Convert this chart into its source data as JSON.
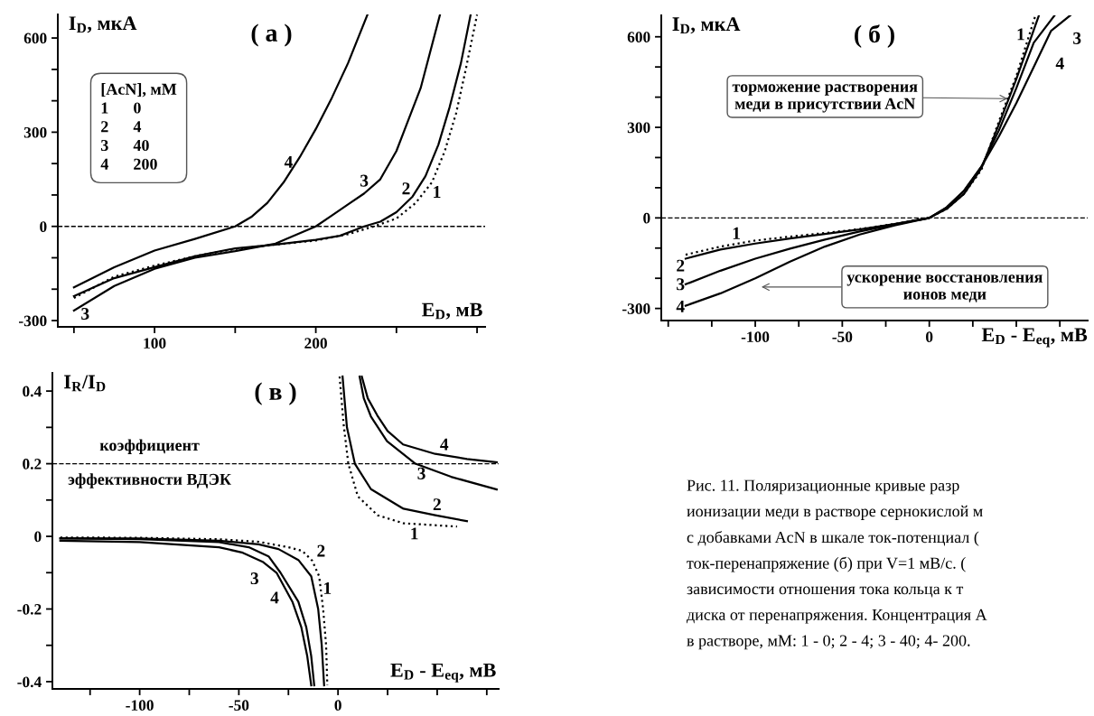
{
  "chart_data": [
    {
      "type": "line",
      "title": "( а )",
      "xlabel": "E$_{D}$, мВ",
      "ylabel": "I$_{D}$, мкА",
      "xlim": [
        40,
        305
      ],
      "ylim": [
        -320,
        675
      ],
      "xticks": [
        {
          "value": 50,
          "label": null
        },
        100,
        {
          "value": 150,
          "label": null
        },
        200,
        {
          "value": 250,
          "label": null
        },
        {
          "value": 300,
          "label": null
        }
      ],
      "yticks": [
        -300,
        {
          "value": -200,
          "label": null
        },
        {
          "value": -100,
          "label": null
        },
        0,
        {
          "value": 100,
          "label": null
        },
        {
          "value": 200,
          "label": null
        },
        300,
        {
          "value": 400,
          "label": null
        },
        {
          "value": 500,
          "label": null
        },
        600
      ],
      "ref_lines": [
        {
          "axis": "y",
          "value": 0,
          "line_style": "dashed",
          "color": "#000000"
        }
      ],
      "series": [
        {
          "color": "#000000",
          "line_style": "dotted",
          "x": [
            50,
            75,
            100,
            125,
            150,
            175,
            200,
            220,
            236,
            250,
            262,
            272,
            280,
            287,
            293,
            300
          ],
          "values": [
            -228,
            -160,
            -125,
            -95,
            -72,
            -58,
            -45,
            -25,
            0,
            25,
            75,
            140,
            240,
            360,
            500,
            674
          ]
        },
        {
          "color": "#000000",
          "line_style": "solid",
          "x": [
            50,
            75,
            100,
            125,
            150,
            175,
            200,
            215,
            230,
            240,
            250,
            260,
            268,
            276,
            283,
            290,
            296
          ],
          "values": [
            -222,
            -165,
            -130,
            -95,
            -70,
            -58,
            -43,
            -30,
            0,
            15,
            45,
            95,
            160,
            260,
            380,
            520,
            674
          ]
        },
        {
          "color": "#000000",
          "line_style": "solid",
          "x": [
            50,
            75,
            100,
            125,
            150,
            175,
            200,
            210,
            220,
            230,
            240,
            250,
            256,
            265,
            277
          ],
          "values": [
            -268,
            -190,
            -135,
            -100,
            -79,
            -55,
            0,
            35,
            70,
            105,
            150,
            240,
            320,
            440,
            674
          ]
        },
        {
          "color": "#000000",
          "line_style": "solid",
          "x": [
            50,
            75,
            100,
            125,
            150,
            160,
            170,
            180,
            190,
            200,
            210,
            220,
            232
          ],
          "values": [
            -194,
            -130,
            -77,
            -40,
            0,
            30,
            75,
            140,
            220,
            310,
            410,
            520,
            674
          ]
        }
      ],
      "annotations": [
        "[AcN], мМ\n1      0\n2      4\n3      40\n4      200",
        "4",
        "3",
        "2",
        "1",
        "3"
      ]
    },
    {
      "type": "line",
      "title": "( б )",
      "xlabel": "E$_{D}$ - E$_{eq}$, мВ",
      "ylabel": "I$_{D}$, мкА",
      "xlim": [
        -154,
        91
      ],
      "ylim": [
        -340,
        671
      ],
      "xticks": [
        {
          "value": -150,
          "label": null
        },
        {
          "value": -125,
          "label": null
        },
        -100,
        {
          "value": -75,
          "label": null
        },
        -50,
        {
          "value": -25,
          "label": null
        },
        0,
        {
          "value": 25,
          "label": null
        },
        {
          "value": 50,
          "label": null
        },
        {
          "value": 75,
          "label": null
        }
      ],
      "yticks": [
        -300,
        {
          "value": -200,
          "label": null
        },
        {
          "value": -100,
          "label": null
        },
        0,
        {
          "value": 100,
          "label": null
        },
        {
          "value": 200,
          "label": null
        },
        300,
        {
          "value": 400,
          "label": null
        },
        {
          "value": 500,
          "label": null
        },
        600
      ],
      "ref_lines": [
        {
          "axis": "y",
          "value": 0,
          "line_style": "dashed",
          "color": "#000000"
        }
      ],
      "series": [
        {
          "color": "#000000",
          "line_style": "dotted",
          "x": [
            -140,
            -120,
            -100,
            -80,
            -60,
            -40,
            -20,
            0,
            10,
            20,
            30,
            40,
            50,
            61
          ],
          "values": [
            -122,
            -95,
            -75,
            -62,
            -50,
            -37,
            -20,
            0,
            30,
            80,
            160,
            320,
            470,
            671
          ]
        },
        {
          "color": "#000000",
          "line_style": "solid",
          "x": [
            -140,
            -120,
            -100,
            -80,
            -60,
            -40,
            -20,
            0,
            10,
            20,
            30,
            40,
            50,
            63
          ],
          "values": [
            -135,
            -105,
            -85,
            -68,
            -53,
            -38,
            -20,
            0,
            30,
            80,
            165,
            310,
            460,
            671
          ]
        },
        {
          "color": "#000000",
          "line_style": "solid",
          "x": [
            -140,
            -120,
            -100,
            -80,
            -60,
            -40,
            -20,
            0,
            10,
            20,
            30,
            40,
            50,
            60,
            72
          ],
          "values": [
            -220,
            -175,
            -135,
            -102,
            -72,
            -45,
            -22,
            0,
            35,
            90,
            170,
            290,
            430,
            580,
            671
          ]
        },
        {
          "color": "#000000",
          "line_style": "solid",
          "x": [
            -140,
            -120,
            -100,
            -80,
            -60,
            -40,
            -20,
            0,
            10,
            20,
            30,
            40,
            50,
            60,
            70,
            81
          ],
          "values": [
            -291,
            -250,
            -200,
            -145,
            -95,
            -55,
            -25,
            0,
            35,
            90,
            170,
            270,
            380,
            500,
            620,
            671
          ]
        }
      ],
      "annotations": [
        "1",
        "3",
        "4",
        "1",
        "2",
        "3",
        "4",
        {
          "text": "торможение растворения\nмеди в присутствии AcN",
          "x": 45,
          "y": 395
        },
        "ускорение восстановления\nионов меди"
      ]
    },
    {
      "type": "line",
      "title": "( в )",
      "xlabel": "E$_{D}$ - E$_{eq}$, мВ",
      "ylabel": "I$_{R}$/I$_{D}$",
      "xlim": [
        -144,
        81
      ],
      "ylim": [
        -0.42,
        0.45
      ],
      "xticks": [
        {
          "value": -125,
          "label": null
        },
        -100,
        {
          "value": -75,
          "label": null
        },
        -50,
        {
          "value": -25,
          "label": null
        },
        0,
        {
          "value": 25,
          "label": null
        },
        {
          "value": 50,
          "label": null
        },
        {
          "value": 75,
          "label": null
        }
      ],
      "yticks": [
        -0.4,
        {
          "value": -0.3,
          "label": null
        },
        -0.2,
        {
          "value": -0.1,
          "label": null
        },
        0,
        {
          "value": 0.1,
          "label": null
        },
        0.2,
        {
          "value": 0.3,
          "label": null
        },
        0.4
      ],
      "ref_lines": [
        {
          "axis": "y",
          "value": 0.2,
          "line_style": "dashed",
          "color": "#000000",
          "label": "коэффициент\n\nэффективности ВДЭК"
        }
      ],
      "series": [
        {
          "color": "#000000",
          "line_style": "dotted",
          "x": [
            -140,
            -100,
            -60,
            -40,
            -25,
            -18,
            -13,
            -9.5,
            -7.5,
            -6,
            -5.4,
            -2,
            0.8,
            2.8,
            5.2,
            10,
            20,
            33,
            60
          ],
          "values": [
            -0.003,
            -0.004,
            -0.008,
            -0.015,
            -0.03,
            -0.04,
            -0.067,
            -0.11,
            -0.2,
            -0.3,
            -0.41,
            null,
            0.44,
            0.31,
            0.2,
            0.11,
            0.058,
            0.036,
            0.027
          ]
        },
        {
          "color": "#000000",
          "line_style": "solid",
          "x": [
            -140,
            -100,
            -60,
            -40,
            -30,
            -20,
            -13.5,
            -10,
            -8.2,
            -7,
            -2,
            2.3,
            4.5,
            8.5,
            16.6,
            33,
            49,
            65
          ],
          "values": [
            -0.005,
            -0.006,
            -0.012,
            -0.022,
            -0.035,
            -0.065,
            -0.11,
            -0.2,
            -0.3,
            -0.41,
            null,
            0.44,
            0.3,
            0.2,
            0.13,
            0.076,
            0.058,
            0.042
          ]
        },
        {
          "color": "#000000",
          "line_style": "solid",
          "x": [
            -140,
            -100,
            -60,
            -45,
            -35,
            -29,
            -20,
            -16,
            -13.5,
            -12,
            0,
            10.9,
            13,
            16.6,
            24.7,
            39,
            57,
            80
          ],
          "values": [
            -0.006,
            -0.008,
            -0.016,
            -0.03,
            -0.055,
            -0.1,
            -0.18,
            -0.25,
            -0.33,
            -0.41,
            null,
            0.44,
            0.38,
            0.33,
            0.262,
            0.2,
            0.164,
            0.129
          ]
        },
        {
          "color": "#000000",
          "line_style": "solid",
          "x": [
            -140,
            -100,
            -60,
            -48,
            -38,
            -31,
            -23,
            -18.5,
            -15.5,
            -13.5,
            0,
            12,
            15,
            19.8,
            25,
            32.8,
            49,
            65,
            80
          ],
          "values": [
            -0.012,
            -0.016,
            -0.03,
            -0.045,
            -0.07,
            -0.1,
            -0.18,
            -0.25,
            -0.33,
            -0.41,
            null,
            0.44,
            0.38,
            0.333,
            0.29,
            0.253,
            0.227,
            0.213,
            0.204
          ]
        }
      ],
      "annotations": [
        "4",
        "3",
        "2",
        "1",
        "2",
        "1",
        "3",
        "4"
      ]
    },
    {
      "type": "other",
      "annotations": [
        "Рис. 11. Поляризационные кривые разр",
        "ионизации меди в растворе сернокислой м",
        "с добавками AcN в шкале ток-потенциал (",
        "ток-перенапряжение (б) при V=1 мВ/с. (",
        "зависимости отношения тока кольца к т",
        "диска от перенапряжения. Концентрация А",
        "в растворе, мМ: 1 - 0; 2 - 4; 3 - 40; 4- 200."
      ]
    }
  ]
}
